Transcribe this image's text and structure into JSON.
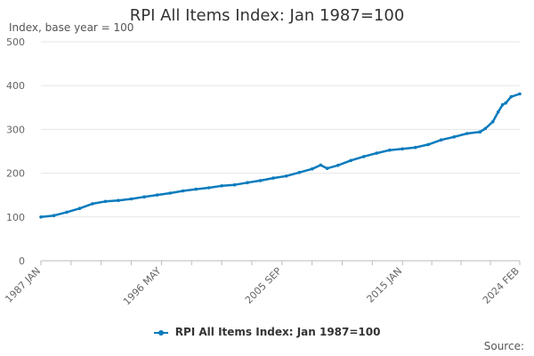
{
  "chart_data": {
    "type": "line",
    "title": "RPI All Items Index: Jan 1987=100",
    "ylabel": "Index, base year = 100",
    "ylim": [
      0,
      500
    ],
    "yticks": [
      0,
      100,
      200,
      300,
      400,
      500
    ],
    "xlim": [
      "1987-01",
      "2024-02"
    ],
    "xticks": [
      "1987 JAN",
      "1996 MAY",
      "2005 SEP",
      "2015 JAN",
      "2024 FEB"
    ],
    "grid": true,
    "legend_position": "bottom",
    "series_color": "#0a7bbd",
    "series": [
      {
        "name": "RPI All Items Index: Jan 1987=100",
        "x": [
          "1987-01",
          "1988-01",
          "1989-01",
          "1990-01",
          "1991-01",
          "1992-01",
          "1993-01",
          "1994-01",
          "1995-01",
          "1996-01",
          "1997-01",
          "1998-01",
          "1999-01",
          "2000-01",
          "2001-01",
          "2002-01",
          "2003-01",
          "2004-01",
          "2005-01",
          "2006-01",
          "2007-01",
          "2008-01",
          "2008-09",
          "2009-03",
          "2010-01",
          "2011-01",
          "2012-01",
          "2013-01",
          "2014-01",
          "2015-01",
          "2016-01",
          "2017-01",
          "2018-01",
          "2019-01",
          "2020-01",
          "2021-01",
          "2021-06",
          "2022-01",
          "2022-06",
          "2022-10",
          "2023-01",
          "2023-06",
          "2024-02"
        ],
        "values": [
          100.0,
          103.3,
          111.0,
          119.5,
          130.2,
          135.6,
          137.9,
          141.3,
          146.0,
          150.2,
          154.4,
          159.5,
          163.4,
          166.6,
          171.1,
          173.3,
          178.4,
          183.1,
          188.9,
          193.4,
          201.6,
          209.8,
          218.4,
          210.9,
          217.9,
          229.0,
          238.0,
          245.8,
          252.6,
          255.4,
          258.8,
          265.5,
          276.0,
          283.0,
          290.6,
          294.3,
          301.9,
          317.7,
          340.0,
          356.2,
          360.3,
          374.6,
          381.0
        ]
      }
    ]
  },
  "source": {
    "label": "Source:"
  }
}
